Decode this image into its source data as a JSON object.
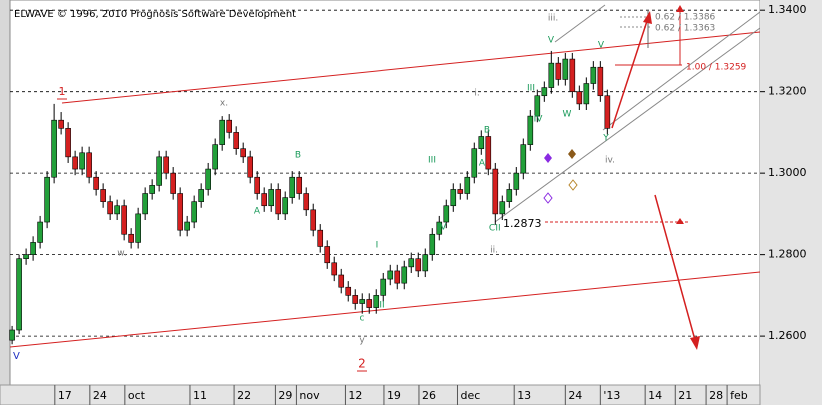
{
  "chart_data": {
    "type": "candlestick",
    "title": "ELWAVE © 1996, 2010 Prognosis Software Development",
    "open": [
      1.259,
      1.2615,
      1.279,
      1.28,
      1.283,
      1.288,
      1.299,
      1.313,
      1.311,
      1.304,
      1.301,
      1.305,
      1.299,
      1.296,
      1.293,
      1.29,
      1.292,
      1.285,
      1.283,
      1.29,
      1.295,
      1.297,
      1.304,
      1.3,
      1.295,
      1.286,
      1.288,
      1.293,
      1.296,
      1.301,
      1.307,
      1.313,
      1.31,
      1.306,
      1.304,
      1.299,
      1.295,
      1.292,
      1.296,
      1.29,
      1.294,
      1.299,
      1.295,
      1.291,
      1.286,
      1.282,
      1.278,
      1.275,
      1.272,
      1.27,
      1.268,
      1.269,
      1.267,
      1.27,
      1.274,
      1.276,
      1.273,
      1.277,
      1.279,
      1.276,
      1.28,
      1.285,
      1.288,
      1.292,
      1.296,
      1.295,
      1.299,
      1.306,
      1.309,
      1.301,
      1.29,
      1.293,
      1.296,
      1.3,
      1.307,
      1.314,
      1.319,
      1.321,
      1.327,
      1.323,
      1.328,
      1.32,
      1.317,
      1.322,
      1.326,
      1.319
    ],
    "high": [
      1.2625,
      1.28,
      1.2815,
      1.2845,
      1.2895,
      1.3005,
      1.317,
      1.315,
      1.3125,
      1.3055,
      1.3065,
      1.3065,
      1.3005,
      1.2975,
      1.2945,
      1.2935,
      1.2935,
      1.2865,
      1.2915,
      1.2965,
      1.2985,
      1.3055,
      1.3055,
      1.3015,
      1.2965,
      1.2895,
      1.2945,
      1.2975,
      1.3025,
      1.3085,
      1.314,
      1.3145,
      1.3115,
      1.3075,
      1.3055,
      1.3005,
      1.2965,
      1.2975,
      1.2975,
      1.2955,
      1.3005,
      1.3005,
      1.2965,
      1.2925,
      1.2875,
      1.2835,
      1.2795,
      1.2765,
      1.2735,
      1.2715,
      1.2705,
      1.2705,
      1.2715,
      1.2755,
      1.2775,
      1.2775,
      1.2785,
      1.2805,
      1.2805,
      1.2815,
      1.2865,
      1.2895,
      1.2935,
      1.2975,
      1.2975,
      1.3005,
      1.3075,
      1.3105,
      1.3105,
      1.3025,
      1.2945,
      1.2975,
      1.3015,
      1.3085,
      1.3155,
      1.3205,
      1.3225,
      1.33,
      1.3285,
      1.3295,
      1.3295,
      1.3215,
      1.3235,
      1.3275,
      1.3275,
      1.3205
    ],
    "low": [
      1.258,
      1.2605,
      1.2775,
      1.2785,
      1.2815,
      1.2865,
      1.2975,
      1.3095,
      1.3025,
      1.2995,
      1.2995,
      1.2975,
      1.2945,
      1.2915,
      1.2885,
      1.2885,
      1.2835,
      1.2815,
      1.2815,
      1.2885,
      1.2935,
      1.2955,
      1.2985,
      1.2935,
      1.2845,
      1.2845,
      1.2865,
      1.2915,
      1.2945,
      1.2995,
      1.3055,
      1.3085,
      1.3045,
      1.3025,
      1.2975,
      1.2935,
      1.2905,
      1.2905,
      1.2885,
      1.2885,
      1.2925,
      1.2935,
      1.2895,
      1.2845,
      1.2805,
      1.2765,
      1.2735,
      1.2705,
      1.2685,
      1.2665,
      1.2655,
      1.2655,
      1.2655,
      1.2685,
      1.2725,
      1.2715,
      1.2715,
      1.2755,
      1.2745,
      1.2745,
      1.2785,
      1.2835,
      1.2865,
      1.2905,
      1.2935,
      1.2935,
      1.2975,
      1.3045,
      1.2995,
      1.2873,
      1.2885,
      1.2915,
      1.2945,
      1.2985,
      1.3055,
      1.3125,
      1.3175,
      1.3195,
      1.3215,
      1.3215,
      1.3185,
      1.3155,
      1.3155,
      1.3205,
      1.3175,
      1.3095
    ],
    "close": [
      1.2615,
      1.279,
      1.28,
      1.283,
      1.288,
      1.299,
      1.313,
      1.311,
      1.304,
      1.301,
      1.305,
      1.299,
      1.296,
      1.293,
      1.29,
      1.292,
      1.285,
      1.283,
      1.29,
      1.295,
      1.297,
      1.304,
      1.3,
      1.295,
      1.286,
      1.288,
      1.293,
      1.296,
      1.301,
      1.307,
      1.313,
      1.31,
      1.306,
      1.304,
      1.299,
      1.295,
      1.292,
      1.296,
      1.29,
      1.294,
      1.299,
      1.295,
      1.291,
      1.286,
      1.282,
      1.278,
      1.275,
      1.272,
      1.27,
      1.268,
      1.269,
      1.267,
      1.27,
      1.274,
      1.276,
      1.273,
      1.277,
      1.279,
      1.276,
      1.28,
      1.285,
      1.288,
      1.292,
      1.296,
      1.295,
      1.299,
      1.306,
      1.309,
      1.301,
      1.29,
      1.293,
      1.296,
      1.3,
      1.307,
      1.314,
      1.319,
      1.321,
      1.327,
      1.323,
      1.328,
      1.32,
      1.317,
      1.322,
      1.326,
      1.319,
      1.311
    ],
    "up_color": "#22a03a",
    "down_color": "#d42020",
    "ylim": [
      1.248,
      1.3425
    ],
    "yticks": [
      {
        "value": 1.26,
        "label": "1.2600"
      },
      {
        "value": 1.28,
        "label": "1.2800"
      },
      {
        "value": 1.3,
        "label": "1.3000"
      },
      {
        "value": 1.32,
        "label": "1.3200"
      },
      {
        "value": 1.34,
        "label": "1.3400"
      }
    ],
    "xlim": [
      -0.3,
      106.8
    ],
    "xticks": [
      {
        "value": 6.1,
        "label": "17"
      },
      {
        "value": 11.1,
        "label": "24"
      },
      {
        "value": 16.1,
        "label": "oct"
      },
      {
        "value": 25.4,
        "label": "11"
      },
      {
        "value": 31.7,
        "label": "22"
      },
      {
        "value": 37.6,
        "label": "29"
      },
      {
        "value": 40.6,
        "label": "nov"
      },
      {
        "value": 47.6,
        "label": "12"
      },
      {
        "value": 53.1,
        "label": "19"
      },
      {
        "value": 58.1,
        "label": "26"
      },
      {
        "value": 63.6,
        "label": "dec"
      },
      {
        "value": 71.7,
        "label": "13"
      },
      {
        "value": 79.0,
        "label": "24"
      },
      {
        "value": 84.0,
        "label": "'13"
      },
      {
        "value": 90.4,
        "label": "14"
      },
      {
        "value": 94.7,
        "label": "21"
      },
      {
        "value": 99.1,
        "label": "28"
      },
      {
        "value": 102.1,
        "label": "feb"
      }
    ],
    "grid": true,
    "annotations": [
      "1",
      "x.",
      "w.",
      "A",
      "B",
      "c",
      "y",
      "2",
      "I",
      "II",
      "III",
      "IV",
      "i.",
      "A",
      "B",
      "C",
      "II",
      "ii.",
      "III",
      "IV",
      "V",
      "W",
      "iii.",
      "V",
      "Y",
      "iv.",
      "1.2873",
      "0.62 / 1.3386",
      "0.62 / 1.3363",
      "1.00 / 1.3259",
      "V"
    ]
  }
}
